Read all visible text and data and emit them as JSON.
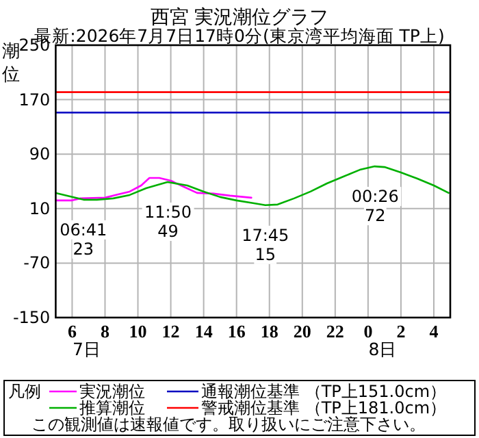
{
  "chart_data": {
    "type": "line",
    "title": "西宮 実況潮位グラフ",
    "subtitle": "最新:2026年7月7日17時0分(東京湾平均海面 TP上)",
    "ylabel": "潮位",
    "legend_title": "凡例",
    "legend": "bottom",
    "grid": true,
    "line_style": "solid",
    "marker": "none",
    "xlim": [
      "2026-07-07T05:00",
      "2026-07-08T05:00"
    ],
    "ylim": [
      -150,
      250
    ],
    "xticks": [
      {
        "value": "2026-07-07T06:00",
        "label": "6"
      },
      {
        "value": "2026-07-07T08:00",
        "label": "8"
      },
      {
        "value": "2026-07-07T10:00",
        "label": "10"
      },
      {
        "value": "2026-07-07T12:00",
        "label": "12"
      },
      {
        "value": "2026-07-07T14:00",
        "label": "14"
      },
      {
        "value": "2026-07-07T16:00",
        "label": "16"
      },
      {
        "value": "2026-07-07T18:00",
        "label": "18"
      },
      {
        "value": "2026-07-07T20:00",
        "label": "20"
      },
      {
        "value": "2026-07-07T22:00",
        "label": "22"
      },
      {
        "value": "2026-07-08T00:00",
        "label": "0"
      },
      {
        "value": "2026-07-08T02:00",
        "label": "2"
      },
      {
        "value": "2026-07-08T04:00",
        "label": "4"
      }
    ],
    "yticks": [
      -150,
      -70,
      10,
      90,
      170,
      250
    ],
    "series": [
      {
        "name": "実況潮位",
        "color": "#ff00ff",
        "x": [
          "2026-07-07T05:00",
          "2026-07-07T06:00",
          "2026-07-07T06:30",
          "2026-07-07T08:00",
          "2026-07-07T08:48",
          "2026-07-07T09:30",
          "2026-07-07T10:12",
          "2026-07-07T10:42",
          "2026-07-07T11:18",
          "2026-07-07T12:00",
          "2026-07-07T12:48",
          "2026-07-07T13:36",
          "2026-07-07T14:36",
          "2026-07-07T15:36",
          "2026-07-07T16:54"
        ],
        "values": [
          22,
          22,
          25,
          26,
          31,
          35,
          44,
          55,
          55,
          51,
          42,
          33,
          32,
          29,
          26
        ]
      },
      {
        "name": "推算潮位",
        "color": "#00b000",
        "x": [
          "2026-07-07T05:00",
          "2026-07-07T06:42",
          "2026-07-07T07:30",
          "2026-07-07T08:30",
          "2026-07-07T09:30",
          "2026-07-07T10:30",
          "2026-07-07T11:48",
          "2026-07-07T13:00",
          "2026-07-07T14:00",
          "2026-07-07T15:00",
          "2026-07-07T16:00",
          "2026-07-07T17:00",
          "2026-07-07T17:45",
          "2026-07-07T18:30",
          "2026-07-07T19:30",
          "2026-07-07T20:30",
          "2026-07-07T21:30",
          "2026-07-07T22:30",
          "2026-07-07T23:30",
          "2026-07-08T00:24",
          "2026-07-08T01:00",
          "2026-07-08T02:00",
          "2026-07-08T03:00",
          "2026-07-08T04:00",
          "2026-07-08T04:54"
        ],
        "values": [
          33,
          23,
          23,
          25,
          30,
          40,
          49,
          44,
          35,
          27,
          22,
          18,
          15,
          16,
          25,
          35,
          47,
          57,
          67,
          72,
          71,
          63,
          54,
          44,
          33
        ]
      }
    ],
    "ref_lines": [
      {
        "axis": "y",
        "value": 151,
        "label": "通報潮位基準 （TP上151.0cm）",
        "color": "#0000c0"
      },
      {
        "axis": "y",
        "value": 181,
        "label": "警戒潮位基準 （TP上181.0cm）",
        "color": "#ff0000"
      }
    ],
    "annotations": [
      {
        "text": "06:41",
        "x": "2026-07-07T06:41",
        "y": 23
      },
      {
        "text": "23",
        "x": "2026-07-07T06:41",
        "y": 23
      },
      {
        "text": "11:50",
        "x": "2026-07-07T11:50",
        "y": 49
      },
      {
        "text": "49",
        "x": "2026-07-07T11:50",
        "y": 49
      },
      {
        "text": "17:45",
        "x": "2026-07-07T17:45",
        "y": 15
      },
      {
        "text": "15",
        "x": "2026-07-07T17:45",
        "y": 15
      },
      {
        "text": "00:26",
        "x": "2026-07-08T00:26",
        "y": 72
      },
      {
        "text": "72",
        "x": "2026-07-08T00:26",
        "y": 72
      },
      "7日",
      "8日",
      "この観測値は速報値です。取り扱いにご注意下さい。"
    ]
  }
}
